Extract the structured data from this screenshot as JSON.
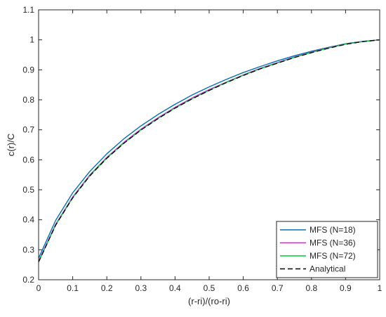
{
  "chart_data": {
    "type": "line",
    "title": "",
    "xlabel": "(r-ri)/(ro-ri)",
    "ylabel": "c(r)/C",
    "xlim": [
      0,
      1
    ],
    "ylim": [
      0.2,
      1.1
    ],
    "xticks": [
      "0",
      "0.1",
      "0.2",
      "0.3",
      "0.4",
      "0.5",
      "0.6",
      "0.7",
      "0.8",
      "0.9",
      "1"
    ],
    "yticks": [
      "0.2",
      "0.3",
      "0.4",
      "0.5",
      "0.6",
      "0.7",
      "0.8",
      "0.9",
      "1",
      "1.1"
    ],
    "grid": false,
    "legend_position": "bottom-right",
    "x": [
      0,
      0.05,
      0.1,
      0.15,
      0.2,
      0.25,
      0.3,
      0.35,
      0.4,
      0.45,
      0.5,
      0.55,
      0.6,
      0.65,
      0.7,
      0.75,
      0.8,
      0.85,
      0.9,
      0.95,
      1.0
    ],
    "series": [
      {
        "name": "MFS (N=18)",
        "color": "#0072BD",
        "style": "solid",
        "values": [
          0.272,
          0.398,
          0.49,
          0.561,
          0.62,
          0.67,
          0.713,
          0.751,
          0.785,
          0.816,
          0.843,
          0.868,
          0.891,
          0.911,
          0.93,
          0.947,
          0.962,
          0.975,
          0.987,
          0.995,
          1.0
        ]
      },
      {
        "name": "MFS (N=36)",
        "color": "#FF00FF",
        "style": "solid",
        "values": [
          0.262,
          0.385,
          0.476,
          0.549,
          0.608,
          0.658,
          0.702,
          0.74,
          0.775,
          0.806,
          0.834,
          0.859,
          0.883,
          0.905,
          0.924,
          0.943,
          0.959,
          0.974,
          0.986,
          0.994,
          1.0
        ]
      },
      {
        "name": "MFS (N=72)",
        "color": "#00CC33",
        "style": "solid",
        "values": [
          0.26,
          0.383,
          0.474,
          0.547,
          0.606,
          0.656,
          0.7,
          0.738,
          0.773,
          0.804,
          0.832,
          0.858,
          0.882,
          0.904,
          0.923,
          0.942,
          0.958,
          0.973,
          0.986,
          0.994,
          1.0
        ]
      },
      {
        "name": "Analytical",
        "color": "#000000",
        "style": "dashed",
        "values": [
          0.259,
          0.382,
          0.473,
          0.546,
          0.605,
          0.655,
          0.699,
          0.737,
          0.772,
          0.803,
          0.831,
          0.857,
          0.881,
          0.903,
          0.922,
          0.941,
          0.957,
          0.972,
          0.985,
          0.994,
          1.0
        ]
      }
    ]
  }
}
